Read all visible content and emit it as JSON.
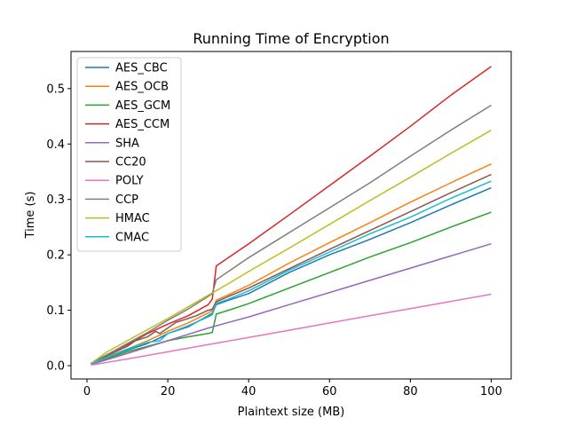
{
  "chart_data": {
    "type": "line",
    "title": "Running Time of Encryption",
    "xlabel": "Plaintext size (MB)",
    "ylabel": "Time (s)",
    "xlim": [
      -3.95,
      104.95
    ],
    "ylim": [
      -0.024,
      0.567
    ],
    "xticks": [
      0,
      20,
      40,
      60,
      80,
      100
    ],
    "xtick_labels": [
      "0",
      "20",
      "40",
      "60",
      "80",
      "100"
    ],
    "yticks": [
      0.0,
      0.1,
      0.2,
      0.3,
      0.4,
      0.5
    ],
    "ytick_labels": [
      "0.0",
      "0.1",
      "0.2",
      "0.3",
      "0.4",
      "0.5"
    ],
    "grid": false,
    "legend_position": "top-left",
    "series": [
      {
        "name": "AES_CBC",
        "color": "#1f77b4",
        "x": [
          1,
          5,
          10,
          15,
          18,
          20,
          25,
          30,
          31,
          32,
          35,
          40,
          50,
          60,
          70,
          80,
          90,
          100
        ],
        "y": [
          0.003,
          0.015,
          0.028,
          0.04,
          0.05,
          0.058,
          0.07,
          0.09,
          0.095,
          0.11,
          0.118,
          0.13,
          0.168,
          0.2,
          0.228,
          0.258,
          0.29,
          0.321
        ]
      },
      {
        "name": "AES_OCB",
        "color": "#ff7f0e",
        "x": [
          1,
          5,
          10,
          15,
          18,
          20,
          25,
          30,
          31,
          32,
          35,
          40,
          50,
          60,
          70,
          80,
          90,
          100
        ],
        "y": [
          0.003,
          0.016,
          0.03,
          0.045,
          0.055,
          0.062,
          0.077,
          0.095,
          0.1,
          0.118,
          0.128,
          0.145,
          0.185,
          0.222,
          0.258,
          0.295,
          0.33,
          0.364
        ]
      },
      {
        "name": "AES_GCM",
        "color": "#2ca02c",
        "x": [
          1,
          5,
          10,
          15,
          20,
          25,
          30,
          31,
          32,
          35,
          40,
          50,
          60,
          70,
          80,
          90,
          100
        ],
        "y": [
          0.003,
          0.013,
          0.025,
          0.035,
          0.045,
          0.052,
          0.058,
          0.06,
          0.093,
          0.1,
          0.112,
          0.14,
          0.168,
          0.196,
          0.222,
          0.25,
          0.277
        ]
      },
      {
        "name": "AES_CCM",
        "color": "#d62728",
        "x": [
          1,
          5,
          10,
          15,
          20,
          25,
          30,
          31,
          32,
          35,
          40,
          50,
          60,
          70,
          80,
          90,
          100
        ],
        "y": [
          0.004,
          0.02,
          0.038,
          0.058,
          0.075,
          0.09,
          0.11,
          0.12,
          0.18,
          0.195,
          0.22,
          0.272,
          0.325,
          0.378,
          0.432,
          0.488,
          0.54
        ]
      },
      {
        "name": "SHA",
        "color": "#9467bd",
        "x": [
          1,
          10,
          20,
          30,
          40,
          50,
          60,
          70,
          80,
          90,
          100
        ],
        "y": [
          0.002,
          0.022,
          0.045,
          0.068,
          0.088,
          0.11,
          0.132,
          0.154,
          0.176,
          0.198,
          0.22
        ]
      },
      {
        "name": "CC20",
        "color": "#8c564b",
        "x": [
          1,
          5,
          10,
          12,
          15,
          17,
          18,
          20,
          22,
          25,
          27,
          30,
          31,
          32,
          35,
          40,
          50,
          60,
          70,
          80,
          90,
          100
        ],
        "y": [
          0.003,
          0.018,
          0.035,
          0.045,
          0.052,
          0.062,
          0.058,
          0.068,
          0.078,
          0.085,
          0.09,
          0.1,
          0.102,
          0.115,
          0.125,
          0.14,
          0.175,
          0.21,
          0.244,
          0.278,
          0.312,
          0.345
        ]
      },
      {
        "name": "POLY",
        "color": "#e377c2",
        "x": [
          1,
          10,
          20,
          30,
          40,
          50,
          60,
          70,
          80,
          90,
          100
        ],
        "y": [
          0.001,
          0.012,
          0.025,
          0.038,
          0.051,
          0.064,
          0.077,
          0.09,
          0.103,
          0.116,
          0.129
        ]
      },
      {
        "name": "CCP",
        "color": "#7f7f7f",
        "x": [
          1,
          5,
          10,
          15,
          20,
          25,
          30,
          31,
          32,
          35,
          40,
          50,
          60,
          70,
          80,
          90,
          100
        ],
        "y": [
          0.004,
          0.02,
          0.04,
          0.06,
          0.082,
          0.102,
          0.125,
          0.13,
          0.155,
          0.17,
          0.195,
          0.24,
          0.285,
          0.33,
          0.378,
          0.425,
          0.47
        ]
      },
      {
        "name": "HMAC",
        "color": "#bcbd22",
        "x": [
          1,
          5,
          10,
          15,
          20,
          25,
          30,
          35,
          40,
          50,
          60,
          70,
          80,
          90,
          100
        ],
        "y": [
          0.004,
          0.025,
          0.045,
          0.065,
          0.085,
          0.106,
          0.127,
          0.148,
          0.17,
          0.212,
          0.255,
          0.298,
          0.34,
          0.383,
          0.425
        ]
      },
      {
        "name": "CMAC",
        "color": "#17becf",
        "x": [
          1,
          5,
          10,
          15,
          18,
          20,
          25,
          30,
          31,
          32,
          35,
          40,
          50,
          60,
          70,
          80,
          90,
          100
        ],
        "y": [
          0.003,
          0.015,
          0.03,
          0.042,
          0.045,
          0.058,
          0.072,
          0.088,
          0.092,
          0.112,
          0.12,
          0.135,
          0.172,
          0.205,
          0.238,
          0.268,
          0.302,
          0.333
        ]
      }
    ]
  }
}
